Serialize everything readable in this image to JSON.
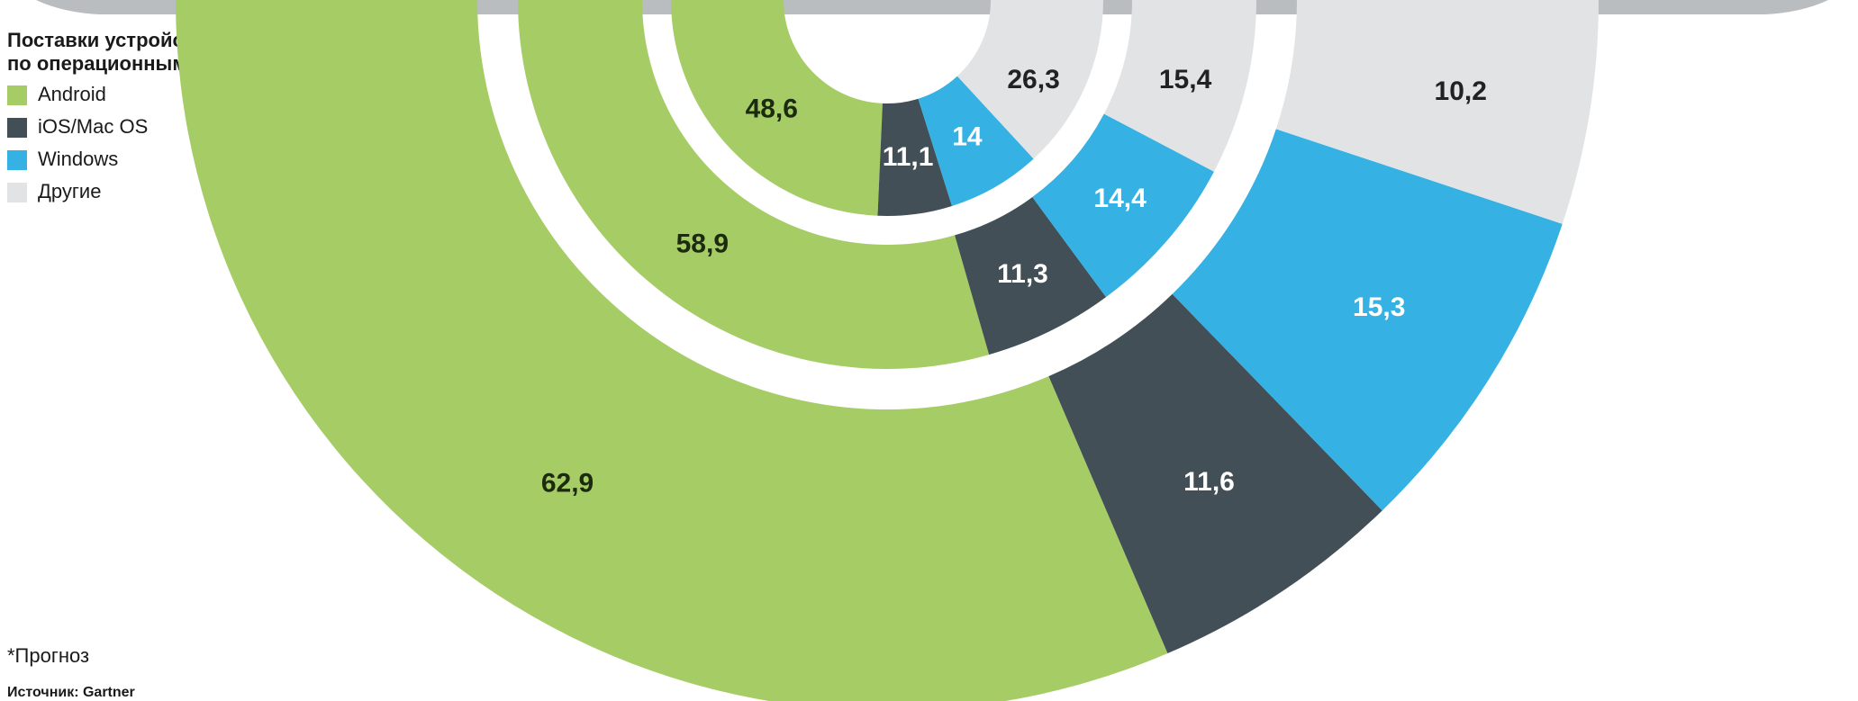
{
  "chart_data": {
    "type": "nested-donut",
    "title_lines": [
      "Поставки устройств",
      "по операционным системам, %"
    ],
    "categories": [
      null,
      null,
      null
    ],
    "series": [
      {
        "name": "Android",
        "color": "#a6cc66",
        "label_color": "#1c2a0e",
        "values": [
          48.6,
          58.9,
          62.9
        ],
        "value_labels": [
          "48,6",
          "58,9",
          "62,9"
        ]
      },
      {
        "name": "iOS/Mac OS",
        "color": "#434f57",
        "label_color": "#ffffff",
        "values": [
          11.1,
          11.3,
          11.6
        ],
        "value_labels": [
          "11,1",
          "11,3",
          "11,6"
        ]
      },
      {
        "name": "Windows",
        "color": "#35b1e3",
        "label_color": "#ffffff",
        "values": [
          14,
          14.4,
          15.3
        ],
        "value_labels": [
          "14",
          "14,4",
          "15,3"
        ]
      },
      {
        "name": "Другие",
        "color": "#e2e3e5",
        "label_color": "#222222",
        "values": [
          26.3,
          15.4,
          10.2
        ],
        "value_labels": [
          "26,3",
          "15,4",
          "10,2"
        ]
      }
    ]
  },
  "footnote": "*Прогноз",
  "source": "Источник: Gartner"
}
